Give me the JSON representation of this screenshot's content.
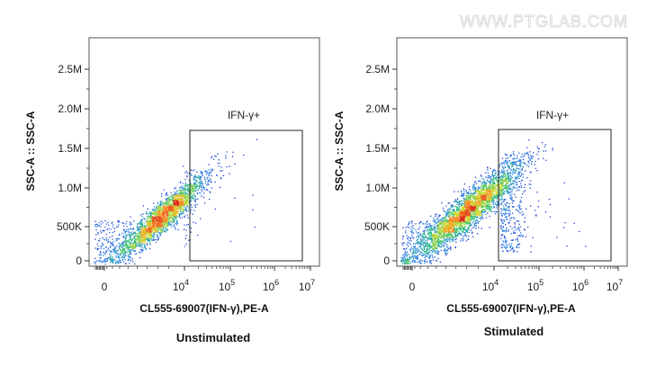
{
  "watermark": "WWW.PTGLAB.COM",
  "chart_data": [
    {
      "type": "scatter",
      "caption": "Unstimulated",
      "xlabel": "CL555-69007(IFN-γ),PE-A",
      "ylabel": "SSC-A :: SSC-A",
      "x_scale": "biexponential",
      "xlim": [
        -1000,
        10000000
      ],
      "ylim": [
        0,
        2900000
      ],
      "x_ticks": [
        {
          "label": "0",
          "value": 0
        },
        {
          "label": "10",
          "exp": "4",
          "value": 10000
        },
        {
          "label": "10",
          "exp": "5",
          "value": 100000
        },
        {
          "label": "10",
          "exp": "6",
          "value": 1000000
        },
        {
          "label": "10",
          "exp": "7",
          "value": 10000000
        }
      ],
      "y_ticks": [
        {
          "label": "0",
          "value": 0
        },
        {
          "label": "500K",
          "value": 500000
        },
        {
          "label": "1.0M",
          "value": 1000000
        },
        {
          "label": "1.5M",
          "value": 1500000
        },
        {
          "label": "2.0M",
          "value": 2000000
        },
        {
          "label": "2.5M",
          "value": 2500000
        }
      ],
      "gate": {
        "label": "IFN-γ+",
        "x_range": [
          15000,
          6000000
        ],
        "y_range": [
          0,
          1650000
        ]
      },
      "population": {
        "center_x": 4000,
        "center_y": 650000,
        "events_in_gate": "very few"
      },
      "colormap": "density (blue-green-yellow-red)"
    },
    {
      "type": "scatter",
      "caption": "Stimulated",
      "xlabel": "CL555-69007(IFN-γ),PE-A",
      "ylabel": "SSC-A :: SSC-A",
      "x_scale": "biexponential",
      "xlim": [
        -1000,
        10000000
      ],
      "ylim": [
        0,
        2900000
      ],
      "x_ticks": [
        {
          "label": "0",
          "value": 0
        },
        {
          "label": "10",
          "exp": "4",
          "value": 10000
        },
        {
          "label": "10",
          "exp": "5",
          "value": 100000
        },
        {
          "label": "10",
          "exp": "6",
          "value": 1000000
        },
        {
          "label": "10",
          "exp": "7",
          "value": 10000000
        }
      ],
      "y_ticks": [
        {
          "label": "0",
          "value": 0
        },
        {
          "label": "500K",
          "value": 500000
        },
        {
          "label": "1.0M",
          "value": 1000000
        },
        {
          "label": "1.5M",
          "value": 1500000
        },
        {
          "label": "2.0M",
          "value": 2000000
        },
        {
          "label": "2.5M",
          "value": 2500000
        }
      ],
      "gate": {
        "label": "IFN-γ+",
        "x_range": [
          15000,
          6000000
        ],
        "y_range": [
          0,
          1650000
        ]
      },
      "population": {
        "center_x": 6000,
        "center_y": 750000,
        "events_in_gate": "visible population"
      },
      "colormap": "density (blue-green-yellow-red)"
    }
  ]
}
